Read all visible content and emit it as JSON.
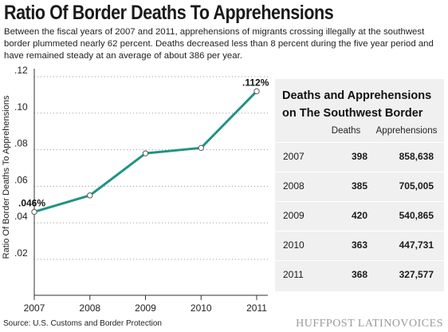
{
  "header": {
    "title": "Ratio Of Border Deaths To Apprehensions",
    "subtitle": "Between the fiscal years of 2007 and 2011, apprehensions of migrants crossing illegally at the southwest border plummeted nearly 62 percent. Deaths decreased less than 8 percent during the five year period and have remained steady at an average of about 386 per year."
  },
  "chart_data": [
    {
      "type": "line",
      "x": [
        "2007",
        "2008",
        "2009",
        "2010",
        "2011"
      ],
      "series": [
        {
          "values": [
            0.046,
            0.055,
            0.078,
            0.081,
            0.112
          ]
        }
      ],
      "ylabel": "Ratio Of Border Deaths To Apprehensions",
      "xlabel": "",
      "ylim": [
        0.02,
        0.12
      ],
      "yticks": [
        ".02",
        ".04",
        ".06",
        ".08",
        ".10",
        ".12"
      ],
      "ytick_values": [
        0.02,
        0.04,
        0.06,
        0.08,
        0.1,
        0.12
      ],
      "annotations": [
        {
          "x": "2007",
          "text": ".046%"
        },
        {
          "x": "2011",
          "text": ".112%"
        }
      ],
      "grid": "horizontal-dotted",
      "line_color": "#1f9384"
    },
    {
      "type": "table",
      "title": "Deaths and Apprehensions on The Southwest Border",
      "columns": [
        "",
        "Deaths",
        "Apprehensions"
      ],
      "rows": [
        {
          "year": "2007",
          "deaths": "398",
          "apprehensions": "858,638"
        },
        {
          "year": "2008",
          "deaths": "385",
          "apprehensions": "705,005"
        },
        {
          "year": "2009",
          "deaths": "420",
          "apprehensions": "540,865"
        },
        {
          "year": "2010",
          "deaths": "363",
          "apprehensions": "447,731"
        },
        {
          "year": "2011",
          "deaths": "368",
          "apprehensions": "327,577"
        }
      ],
      "background": "#f0f0f0"
    }
  ],
  "footer": {
    "source": "Source: U.S. Customs and Border Protection",
    "brand": "HUFFPOST LATINOVOICES"
  }
}
